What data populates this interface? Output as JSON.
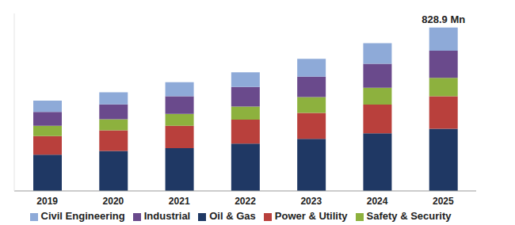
{
  "chart_data": {
    "type": "bar",
    "stacked": true,
    "grid": false,
    "legend": "bottom",
    "tick_labels": "x",
    "categories": [
      "2019",
      "2020",
      "2021",
      "2022",
      "2023",
      "2024",
      "2025"
    ],
    "ylim": [
      0,
      900
    ],
    "series": [
      {
        "name": "Oil & Gas",
        "color": "#1f3864",
        "values": [
          184,
          203,
          217,
          240,
          264,
          292,
          315
        ]
      },
      {
        "name": "Power & Utility",
        "color": "#b9403c",
        "values": [
          94,
          104,
          113,
          122,
          132,
          146,
          165
        ]
      },
      {
        "name": "Safety & Security",
        "color": "#8db13e",
        "values": [
          52,
          57,
          61,
          66,
          80,
          85,
          94
        ]
      },
      {
        "name": "Industrial",
        "color": "#6a4a8c",
        "values": [
          71,
          75,
          89,
          99,
          104,
          122,
          137
        ]
      },
      {
        "name": "Civil Engineering",
        "color": "#8eaad8",
        "values": [
          57,
          61,
          71,
          75,
          90,
          104,
          117.9
        ]
      }
    ],
    "annotations": [
      {
        "text": "828.9 Mn",
        "x": "2025",
        "value": 828.9
      }
    ]
  }
}
